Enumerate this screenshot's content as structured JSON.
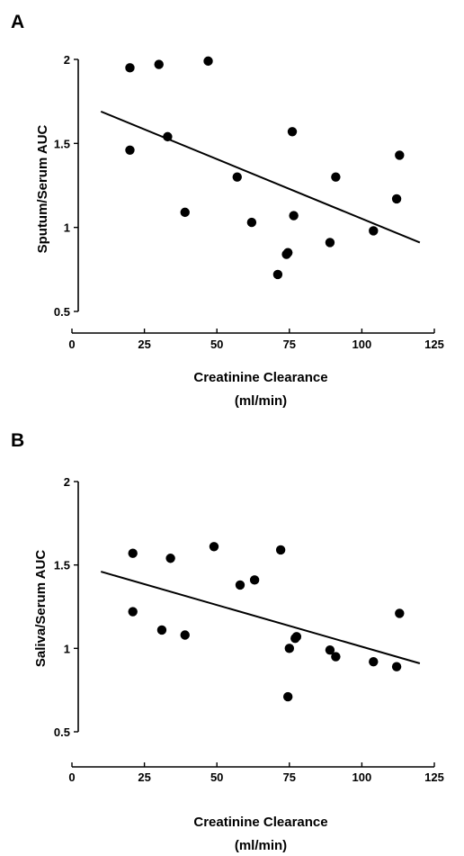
{
  "chart_data": [
    {
      "type": "scatter",
      "panel_label": "A",
      "xlabel": "Creatinine Clearance",
      "xlabel_unit": "(ml/min)",
      "ylabel": "Sputum/Serum AUC",
      "xlim": [
        0,
        125
      ],
      "ylim": [
        0.5,
        2
      ],
      "x_ticks": [
        "0",
        "25",
        "50",
        "75",
        "100",
        "125"
      ],
      "y_ticks": [
        "0.5",
        "1",
        "1.5",
        "2"
      ],
      "grid": false,
      "points": [
        {
          "x": 20,
          "y": 1.95
        },
        {
          "x": 30,
          "y": 1.97
        },
        {
          "x": 47,
          "y": 1.99
        },
        {
          "x": 20,
          "y": 1.46
        },
        {
          "x": 33,
          "y": 1.54
        },
        {
          "x": 39,
          "y": 1.09
        },
        {
          "x": 57,
          "y": 1.3
        },
        {
          "x": 62,
          "y": 1.03
        },
        {
          "x": 71,
          "y": 0.72
        },
        {
          "x": 74,
          "y": 0.84
        },
        {
          "x": 74.5,
          "y": 0.85
        },
        {
          "x": 76,
          "y": 1.57
        },
        {
          "x": 76.5,
          "y": 1.07
        },
        {
          "x": 89,
          "y": 0.91
        },
        {
          "x": 91,
          "y": 1.3
        },
        {
          "x": 104,
          "y": 0.98
        },
        {
          "x": 112,
          "y": 1.17
        },
        {
          "x": 113,
          "y": 1.43
        }
      ],
      "regression": {
        "x": [
          10,
          120
        ],
        "y": [
          1.69,
          0.91
        ]
      }
    },
    {
      "type": "scatter",
      "panel_label": "B",
      "xlabel": "Creatinine Clearance",
      "xlabel_unit": "(ml/min)",
      "ylabel": "Saliva/Serum AUC",
      "xlim": [
        0,
        125
      ],
      "ylim": [
        0.5,
        2
      ],
      "x_ticks": [
        "0",
        "25",
        "50",
        "75",
        "100",
        "125"
      ],
      "y_ticks": [
        "0.5",
        "1",
        "1.5",
        "2"
      ],
      "grid": false,
      "points": [
        {
          "x": 21,
          "y": 1.57
        },
        {
          "x": 21,
          "y": 1.22
        },
        {
          "x": 31,
          "y": 1.11
        },
        {
          "x": 34,
          "y": 1.54
        },
        {
          "x": 39,
          "y": 1.08
        },
        {
          "x": 49,
          "y": 1.61
        },
        {
          "x": 58,
          "y": 1.38
        },
        {
          "x": 63,
          "y": 1.41
        },
        {
          "x": 72,
          "y": 1.59
        },
        {
          "x": 74.5,
          "y": 0.71
        },
        {
          "x": 75,
          "y": 1.0
        },
        {
          "x": 77,
          "y": 1.06
        },
        {
          "x": 77.5,
          "y": 1.07
        },
        {
          "x": 89,
          "y": 0.99
        },
        {
          "x": 91,
          "y": 0.95
        },
        {
          "x": 104,
          "y": 0.92
        },
        {
          "x": 112,
          "y": 0.89
        },
        {
          "x": 113,
          "y": 1.21
        }
      ],
      "regression": {
        "x": [
          10,
          120
        ],
        "y": [
          1.46,
          0.91
        ]
      }
    }
  ]
}
